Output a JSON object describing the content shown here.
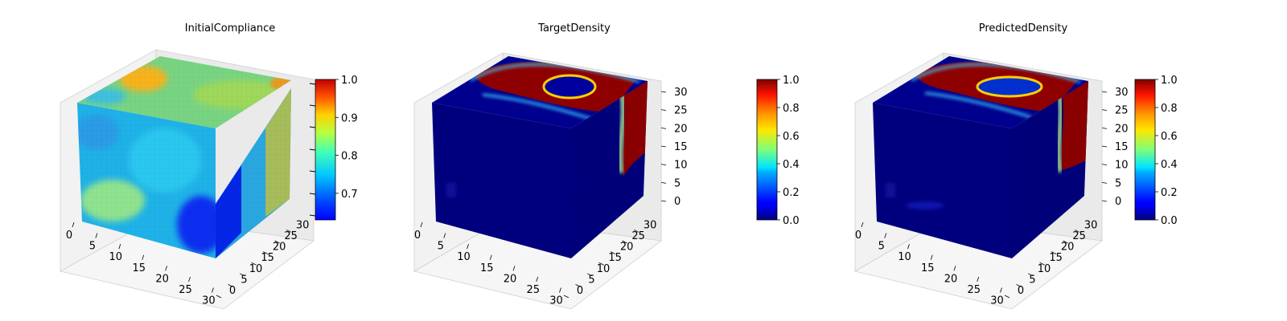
{
  "chart_data": [
    {
      "type": "heatmap",
      "title": "InitialCompliance",
      "x_ticks": [
        0,
        5,
        10,
        15,
        20,
        25,
        30
      ],
      "y_ticks": [
        0,
        5,
        10,
        15,
        20,
        25,
        30
      ],
      "z_ticks": [],
      "colorbar": {
        "colormap": "jet",
        "range": [
          0.63,
          1.0
        ],
        "ticks": [
          "0.7",
          "0.8",
          "0.9",
          "1.0"
        ]
      },
      "voxel_grid": [
        32,
        32,
        32
      ]
    },
    {
      "type": "heatmap",
      "title": "TargetDensity",
      "x_ticks": [
        0,
        5,
        10,
        15,
        20,
        25,
        30
      ],
      "y_ticks": [
        0,
        5,
        10,
        15,
        20,
        25,
        30
      ],
      "z_ticks": [
        0,
        5,
        10,
        15,
        20,
        25,
        30
      ],
      "colorbar": {
        "colormap": "jet",
        "range": [
          0.0,
          1.0
        ],
        "ticks": [
          "0.0",
          "0.2",
          "0.4",
          "0.6",
          "0.8",
          "1.0"
        ]
      },
      "voxel_grid": [
        32,
        32,
        32
      ]
    },
    {
      "type": "heatmap",
      "title": "PredictedDensity",
      "x_ticks": [
        0,
        5,
        10,
        15,
        20,
        25,
        30
      ],
      "y_ticks": [
        0,
        5,
        10,
        15,
        20,
        25,
        30
      ],
      "z_ticks": [
        0,
        5,
        10,
        15,
        20,
        25,
        30
      ],
      "colorbar": {
        "colormap": "jet",
        "range": [
          0.0,
          1.0
        ],
        "ticks": [
          "0.0",
          "0.2",
          "0.4",
          "0.6",
          "0.8",
          "1.0"
        ]
      },
      "voxel_grid": [
        32,
        32,
        32
      ]
    }
  ]
}
